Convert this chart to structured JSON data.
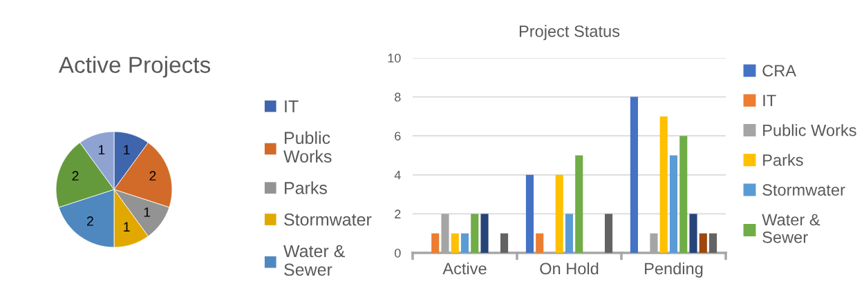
{
  "chart_data": [
    {
      "type": "pie",
      "title": "Active Projects",
      "categories": [
        "IT",
        "Public Works",
        "Parks",
        "Stormwater",
        "Water & Sewer",
        null,
        null
      ],
      "values": [
        1,
        2,
        1,
        1,
        2,
        2,
        1
      ],
      "colors": [
        "#3f65ad",
        "#d26b29",
        "#939393",
        "#e0a800",
        "#4f88be",
        "#64993c",
        "#8fa3d3"
      ],
      "data_labels": true,
      "legend": "right"
    },
    {
      "type": "bar",
      "title": "Project Status",
      "categories": [
        "Active",
        "On Hold",
        "Pending"
      ],
      "series": [
        {
          "name": "CRA",
          "color": "#4472c4",
          "values": [
            0,
            4,
            8
          ]
        },
        {
          "name": "IT",
          "color": "#ed7d31",
          "values": [
            1,
            1,
            0
          ]
        },
        {
          "name": "Public Works",
          "color": "#a5a5a5",
          "values": [
            2,
            0,
            1
          ]
        },
        {
          "name": "Parks",
          "color": "#ffc000",
          "values": [
            1,
            4,
            7
          ]
        },
        {
          "name": "Stormwater",
          "color": "#5b9bd5",
          "values": [
            1,
            2,
            5
          ]
        },
        {
          "name": "Water & Sewer",
          "color": "#70ad47",
          "values": [
            2,
            5,
            6
          ]
        },
        {
          "color": "#264478",
          "values": [
            2,
            0,
            2
          ]
        },
        {
          "color": "#9e480e",
          "values": [
            0,
            0,
            1
          ]
        },
        {
          "color": "#636363",
          "values": [
            1,
            2,
            1
          ]
        }
      ],
      "ylim": [
        0,
        10
      ],
      "yticks": [
        0,
        2,
        4,
        6,
        8,
        10
      ],
      "grid": "y",
      "legend": "right"
    }
  ]
}
